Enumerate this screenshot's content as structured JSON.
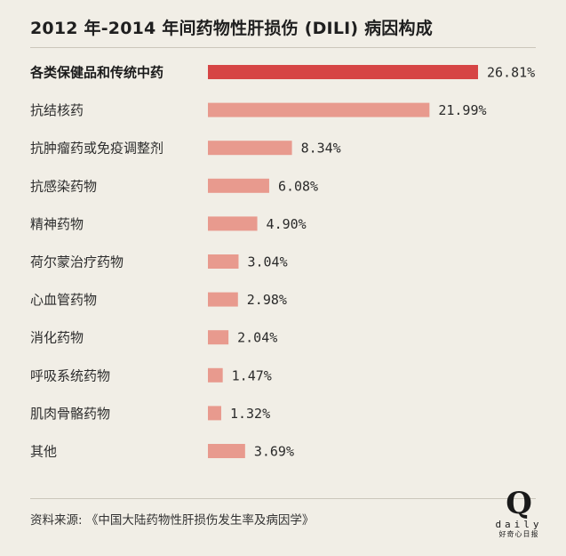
{
  "title": "2012 年-2014 年间药物性肝损伤 (DILI) 病因构成",
  "source": "资料来源: 《中国大陆药物性肝损伤发生率及病因学》",
  "logo": {
    "letter": "Q",
    "wordmark": "daily",
    "subtitle": "好奇心日报"
  },
  "colors": {
    "highlight_bar": "#d64545",
    "bar": "#e89a8e",
    "background": "#f1eee6"
  },
  "chart_data": {
    "type": "bar",
    "orientation": "horizontal",
    "categories": [
      "各类保健品和传统中药",
      "抗结核药",
      "抗肿瘤药或免疫调整剂",
      "抗感染药物",
      "精神药物",
      "荷尔蒙治疗药物",
      "心血管药物",
      "消化药物",
      "呼吸系统药物",
      "肌肉骨骼药物",
      "其他"
    ],
    "values": [
      26.81,
      21.99,
      8.34,
      6.08,
      4.9,
      3.04,
      2.98,
      2.04,
      1.47,
      1.32,
      3.69
    ],
    "value_labels": [
      "26.81%",
      "21.99%",
      "8.34%",
      "6.08%",
      "4.90%",
      "3.04%",
      "2.98%",
      "2.04%",
      "1.47%",
      "1.32%",
      "3.69%"
    ],
    "highlight_index": 0,
    "unit": "%",
    "xlim": [
      0,
      26.81
    ]
  }
}
